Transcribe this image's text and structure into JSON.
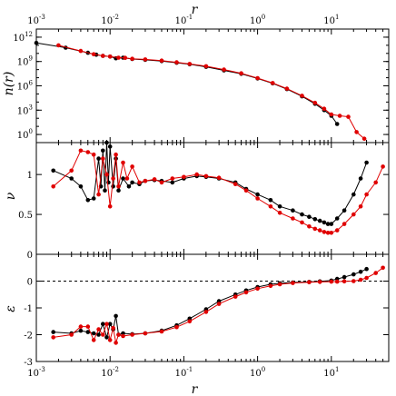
{
  "chart_data": [
    {
      "type": "line",
      "panel": "top",
      "xlabel_top": "r",
      "ylabel": "n(r)",
      "x_scale": "log",
      "y_scale": "log",
      "xlim": [
        0.001,
        60
      ],
      "ylim": [
        0.1,
        10000000000000.0
      ],
      "x_ticks": [
        {
          "base": "10",
          "exp": "-3",
          "v": 0.001
        },
        {
          "base": "10",
          "exp": "-2",
          "v": 0.01
        },
        {
          "base": "10",
          "exp": "-1",
          "v": 0.1
        },
        {
          "base": "10",
          "exp": "0",
          "v": 1
        },
        {
          "base": "10",
          "exp": "1",
          "v": 10
        }
      ],
      "y_ticks": [
        {
          "base": "10",
          "exp": "0",
          "v": 1
        },
        {
          "base": "10",
          "exp": "3",
          "v": 1000
        },
        {
          "base": "10",
          "exp": "6",
          "v": 1000000
        },
        {
          "base": "10",
          "exp": "9",
          "v": 1000000000
        },
        {
          "base": "10",
          "exp": "12",
          "v": 1000000000000
        }
      ],
      "series": [
        {
          "color": "#000000",
          "x": [
            0.001,
            0.0025,
            0.005,
            0.0065,
            0.008,
            0.01,
            0.012,
            0.015,
            0.02,
            0.03,
            0.05,
            0.08,
            0.12,
            0.2,
            0.35,
            0.6,
            1.0,
            1.6,
            2.5,
            4,
            6,
            8,
            10,
            12
          ],
          "y": [
            200000000000.0,
            50000000000.0,
            12000000000.0,
            7000000000.0,
            5000000000.0,
            4000000000.0,
            2500000000.0,
            3000000000.0,
            2000000000.0,
            1600000000.0,
            1100000000.0,
            700000000.0,
            450000000.0,
            220000000.0,
            80000000.0,
            30000000.0,
            8000000.0,
            2000000.0,
            400000.0,
            50000.0,
            6000.0,
            1000.0,
            200,
            20
          ]
        },
        {
          "color": "#e00000",
          "x": [
            0.002,
            0.004,
            0.006,
            0.008,
            0.01,
            0.013,
            0.016,
            0.02,
            0.03,
            0.05,
            0.08,
            0.12,
            0.2,
            0.35,
            0.6,
            1.0,
            1.6,
            2.5,
            4,
            6,
            8,
            10,
            13,
            17,
            22,
            28
          ],
          "y": [
            100000000000.0,
            20000000000.0,
            8000000000.0,
            5000000000.0,
            4000000000.0,
            3000000000.0,
            2800000000.0,
            2200000000.0,
            1800000000.0,
            1300000000.0,
            800000000.0,
            500000000.0,
            260000000.0,
            100000000.0,
            35000000.0,
            9000000.0,
            2200000.0,
            450000.0,
            60000.0,
            8000.0,
            1500.0,
            300,
            200,
            150,
            2,
            0.3
          ]
        }
      ]
    },
    {
      "type": "line",
      "panel": "middle",
      "ylabel": "ν",
      "x_scale": "log",
      "xlim": [
        0.001,
        60
      ],
      "ylim": [
        0,
        1.4
      ],
      "y_ticks": [
        {
          "label": "0",
          "v": 0
        },
        {
          "label": "0.5",
          "v": 0.5
        },
        {
          "label": "1",
          "v": 1
        }
      ],
      "series": [
        {
          "color": "#000000",
          "x": [
            0.0017,
            0.003,
            0.004,
            0.005,
            0.006,
            0.007,
            0.0075,
            0.008,
            0.0085,
            0.009,
            0.0095,
            0.01,
            0.011,
            0.012,
            0.013,
            0.015,
            0.018,
            0.02,
            0.025,
            0.03,
            0.04,
            0.05,
            0.07,
            0.1,
            0.15,
            0.2,
            0.3,
            0.5,
            0.7,
            1.0,
            1.5,
            2,
            3,
            4,
            5,
            6,
            7,
            8,
            9,
            10,
            12,
            15,
            20,
            25,
            30
          ],
          "y": [
            1.05,
            0.95,
            0.85,
            0.68,
            0.7,
            1.2,
            0.85,
            1.3,
            0.8,
            1.4,
            0.9,
            1.35,
            0.85,
            1.2,
            0.8,
            0.95,
            0.85,
            0.9,
            0.88,
            0.92,
            0.93,
            0.92,
            0.9,
            0.95,
            0.98,
            0.97,
            0.95,
            0.9,
            0.82,
            0.75,
            0.68,
            0.6,
            0.55,
            0.5,
            0.47,
            0.44,
            0.42,
            0.4,
            0.38,
            0.38,
            0.45,
            0.55,
            0.75,
            0.95,
            1.15
          ]
        },
        {
          "color": "#e00000",
          "x": [
            0.0017,
            0.003,
            0.004,
            0.005,
            0.006,
            0.007,
            0.008,
            0.009,
            0.01,
            0.011,
            0.012,
            0.013,
            0.015,
            0.017,
            0.02,
            0.025,
            0.03,
            0.04,
            0.05,
            0.07,
            0.1,
            0.15,
            0.2,
            0.3,
            0.5,
            0.7,
            1.0,
            1.5,
            2,
            3,
            4,
            5,
            6,
            7,
            8,
            9,
            10,
            12,
            15,
            20,
            25,
            30,
            40,
            50
          ],
          "y": [
            0.85,
            1.05,
            1.3,
            1.28,
            1.25,
            0.75,
            1.2,
            1.0,
            0.6,
            0.95,
            1.25,
            0.85,
            1.15,
            0.95,
            1.1,
            0.9,
            0.92,
            0.94,
            0.9,
            0.95,
            0.97,
            1.0,
            0.98,
            0.96,
            0.88,
            0.8,
            0.7,
            0.6,
            0.52,
            0.45,
            0.4,
            0.35,
            0.32,
            0.3,
            0.28,
            0.27,
            0.27,
            0.3,
            0.38,
            0.5,
            0.6,
            0.75,
            0.9,
            1.1
          ]
        }
      ]
    },
    {
      "type": "line",
      "panel": "bottom",
      "ylabel": "ε",
      "xlabel": "r",
      "x_scale": "log",
      "xlim": [
        0.001,
        60
      ],
      "ylim": [
        -3,
        1
      ],
      "reference_line": {
        "y": 0,
        "style": "dashed"
      },
      "x_ticks": [
        {
          "base": "10",
          "exp": "-3",
          "v": 0.001
        },
        {
          "base": "10",
          "exp": "-2",
          "v": 0.01
        },
        {
          "base": "10",
          "exp": "-1",
          "v": 0.1
        },
        {
          "base": "10",
          "exp": "0",
          "v": 1
        },
        {
          "base": "10",
          "exp": "1",
          "v": 10
        }
      ],
      "y_ticks": [
        {
          "label": "-3",
          "v": -3
        },
        {
          "label": "-2",
          "v": -2
        },
        {
          "label": "-1",
          "v": -1
        },
        {
          "label": "0",
          "v": 0
        }
      ],
      "series": [
        {
          "color": "#000000",
          "x": [
            0.0017,
            0.003,
            0.004,
            0.005,
            0.006,
            0.007,
            0.008,
            0.009,
            0.01,
            0.011,
            0.012,
            0.013,
            0.015,
            0.02,
            0.03,
            0.05,
            0.08,
            0.12,
            0.2,
            0.3,
            0.5,
            0.7,
            1.0,
            1.5,
            2,
            3,
            5,
            7,
            10,
            12,
            15,
            20,
            25,
            30
          ],
          "y": [
            -1.9,
            -1.95,
            -1.85,
            -1.9,
            -1.95,
            -2.0,
            -1.6,
            -2.1,
            -1.6,
            -1.8,
            -1.3,
            -2.0,
            -1.95,
            -1.98,
            -1.95,
            -1.85,
            -1.65,
            -1.4,
            -1.05,
            -0.75,
            -0.5,
            -0.35,
            -0.22,
            -0.12,
            -0.08,
            -0.05,
            -0.03,
            -0.01,
            0.02,
            0.08,
            0.15,
            0.25,
            0.35,
            0.45
          ]
        },
        {
          "color": "#e00000",
          "x": [
            0.0017,
            0.003,
            0.004,
            0.005,
            0.006,
            0.007,
            0.008,
            0.009,
            0.01,
            0.011,
            0.012,
            0.013,
            0.015,
            0.02,
            0.03,
            0.05,
            0.08,
            0.12,
            0.2,
            0.3,
            0.5,
            0.7,
            1.0,
            1.5,
            2,
            3,
            5,
            7,
            10,
            12,
            15,
            20,
            25,
            30,
            40,
            50
          ],
          "y": [
            -2.1,
            -2.0,
            -1.7,
            -1.7,
            -2.2,
            -1.8,
            -2.0,
            -1.6,
            -2.2,
            -1.75,
            -2.3,
            -2.0,
            -2.05,
            -2.0,
            -1.95,
            -1.88,
            -1.72,
            -1.5,
            -1.15,
            -0.85,
            -0.58,
            -0.42,
            -0.28,
            -0.18,
            -0.12,
            -0.07,
            -0.04,
            -0.03,
            -0.02,
            -0.02,
            -0.01,
            0.0,
            0.05,
            0.12,
            0.3,
            0.5
          ]
        }
      ]
    }
  ]
}
